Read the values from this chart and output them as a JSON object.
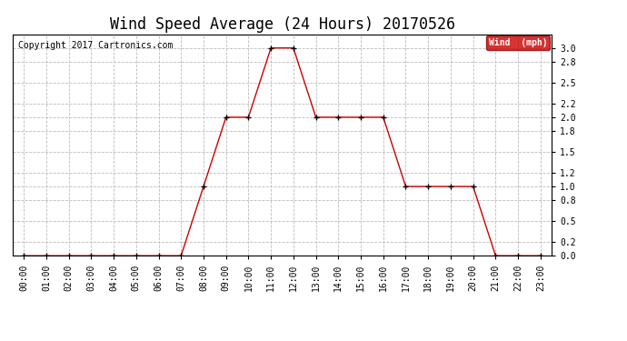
{
  "title": "Wind Speed Average (24 Hours) 20170526",
  "copyright_text": "Copyright 2017 Cartronics.com",
  "legend_label": "Wind  (mph)",
  "hours": [
    0,
    1,
    2,
    3,
    4,
    5,
    6,
    7,
    8,
    9,
    10,
    11,
    12,
    13,
    14,
    15,
    16,
    17,
    18,
    19,
    20,
    21,
    22,
    23
  ],
  "wind_values": [
    0.0,
    0.0,
    0.0,
    0.0,
    0.0,
    0.0,
    0.0,
    0.0,
    1.0,
    2.0,
    2.0,
    3.0,
    3.0,
    2.0,
    2.0,
    2.0,
    2.0,
    1.0,
    1.0,
    1.0,
    1.0,
    0.0,
    0.0,
    0.0
  ],
  "line_color": "#cc0000",
  "marker_color": "#000000",
  "background_color": "#ffffff",
  "grid_color": "#bbbbbb",
  "ylim": [
    0.0,
    3.2
  ],
  "yticks": [
    0.0,
    0.2,
    0.5,
    0.8,
    1.0,
    1.2,
    1.5,
    1.8,
    2.0,
    2.2,
    2.5,
    2.8,
    3.0
  ],
  "legend_bg": "#cc0000",
  "legend_text_color": "#ffffff",
  "title_fontsize": 12,
  "copyright_fontsize": 7,
  "tick_fontsize": 7
}
